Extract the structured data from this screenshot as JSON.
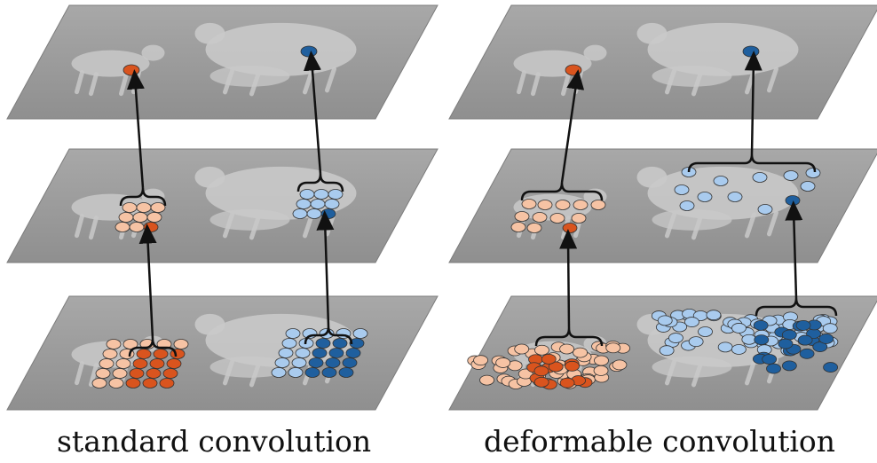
{
  "captions": {
    "left": "standard convolution",
    "right": "deformable convolution"
  },
  "colors": {
    "plane_fill": "#9a9a9a",
    "plane_edge": "#7d7d7d",
    "animal_fill": "#c9c9c9",
    "orange_dark": "#d9541e",
    "orange_light": "#f6c3a4",
    "blue_dark": "#1f5f9e",
    "blue_light": "#a9cbee",
    "arrow": "#111111"
  },
  "panels": [
    {
      "id": "standard",
      "layers": [
        "top",
        "middle",
        "bottom"
      ]
    },
    {
      "id": "deformable",
      "layers": [
        "top",
        "middle",
        "bottom"
      ]
    }
  ],
  "icons": [
    "lamb-silhouette",
    "sheep-silhouette",
    "sampling-point",
    "arrow",
    "brace"
  ]
}
